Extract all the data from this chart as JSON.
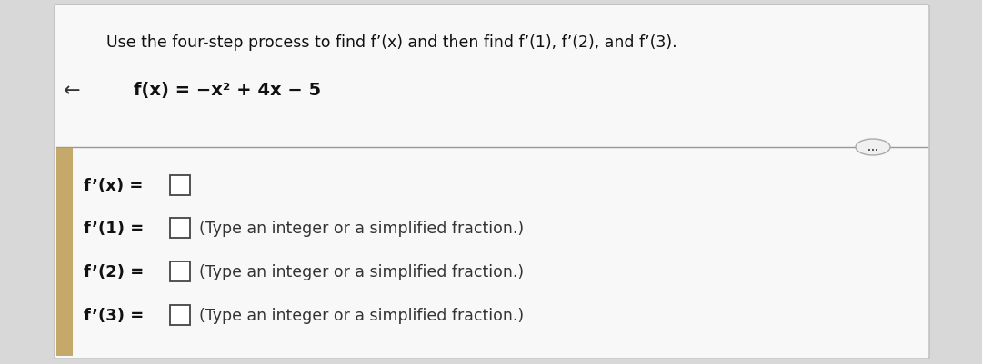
{
  "bg_color": "#d8d8d8",
  "card_color": "#f8f8f8",
  "title": "Use the four-step process to find f’(x) and then find f’(1), f’(2), and f’(3).",
  "function_label": "f(x) = −x² + 4x − 5",
  "lines": [
    "f’(x) =",
    "f’(1) =",
    "f’(2) =",
    "f’(3) ="
  ],
  "hints": [
    "",
    "(Type an integer or a simplified fraction.)",
    "(Type an integer or a simplified fraction.)",
    "(Type an integer or a simplified fraction.)"
  ],
  "arrow_text": "←",
  "dots_text": "...",
  "left_bar_color": "#c4a96a",
  "title_fontsize": 12.5,
  "function_fontsize": 14,
  "line_fontsize": 13,
  "hint_fontsize": 12.5
}
